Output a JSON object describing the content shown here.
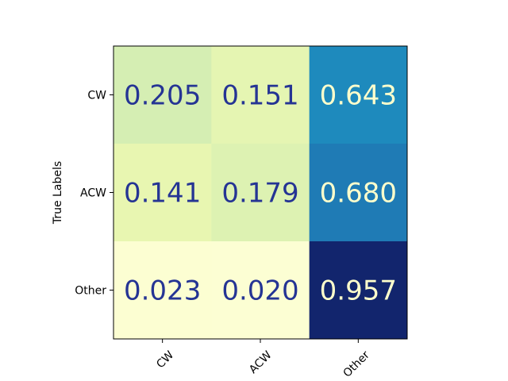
{
  "chart_data": {
    "type": "heatmap",
    "title": "",
    "xlabel": "",
    "ylabel": "True Labels",
    "x_categories": [
      "CW",
      "ACW",
      "Other"
    ],
    "y_categories": [
      "CW",
      "ACW",
      "Other"
    ],
    "values": [
      [
        0.205,
        0.151,
        0.643
      ],
      [
        0.141,
        0.179,
        0.68
      ],
      [
        0.023,
        0.02,
        0.957
      ]
    ],
    "value_labels": [
      [
        "0.205",
        "0.151",
        "0.643"
      ],
      [
        "0.141",
        "0.179",
        "0.680"
      ],
      [
        "0.023",
        "0.020",
        "0.957"
      ]
    ],
    "colormap": "YlGnBu",
    "vmin": 0.0,
    "vmax": 1.0,
    "text_colors": {
      "dark": "#253494",
      "light": "#ffffcc"
    },
    "grid": false,
    "colorbar": false
  }
}
